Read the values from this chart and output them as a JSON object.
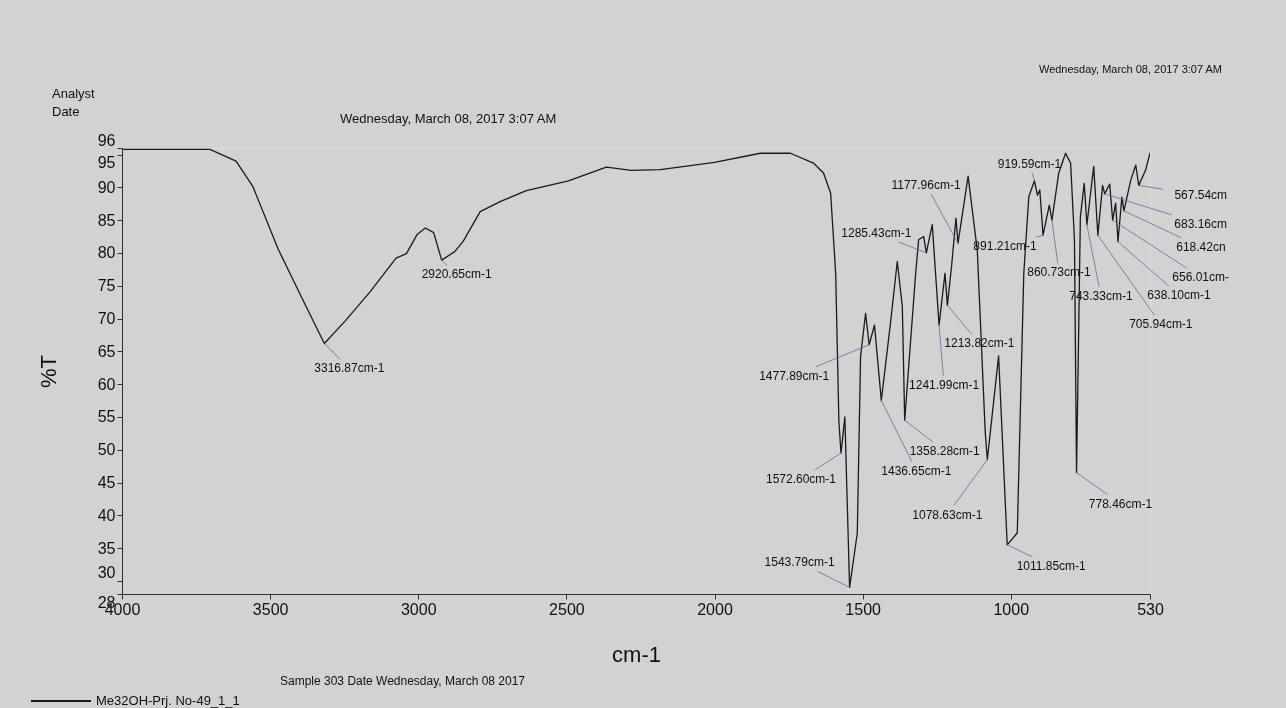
{
  "chart_data": {
    "type": "line",
    "xlabel": "cm-1",
    "ylabel": "%T",
    "xlim": [
      4000,
      530
    ],
    "xticks": [
      4000,
      3500,
      3000,
      2500,
      2000,
      1500,
      1000,
      530
    ],
    "ylim": [
      28,
      96
    ],
    "yticks": [
      28,
      30,
      35,
      40,
      45,
      50,
      55,
      60,
      65,
      70,
      75,
      80,
      85,
      90,
      95,
      96
    ],
    "grid": false,
    "legend": "bottom",
    "marker": "none",
    "line_style": "solid",
    "x": [
      4000,
      3703,
      3615,
      3559,
      3473,
      3389,
      3317,
      3247,
      3162,
      3075,
      3040,
      3004,
      2976,
      2948,
      2921,
      2877,
      2848,
      2791,
      2720,
      2635,
      2493,
      2365,
      2280,
      2183,
      2000,
      1845,
      1744,
      1666,
      1632,
      1608,
      1591,
      1580,
      1573,
      1560,
      1544,
      1518,
      1507,
      1490,
      1478,
      1460,
      1437,
      1406,
      1383,
      1366,
      1358,
      1321,
      1311,
      1294,
      1285,
      1265,
      1242,
      1222,
      1214,
      1200,
      1185,
      1178,
      1144,
      1113,
      1086,
      1079,
      1041,
      1012,
      978,
      956,
      939,
      920,
      910,
      902,
      891,
      870,
      861,
      838,
      815,
      798,
      785,
      778,
      765,
      752,
      743,
      720,
      706,
      690,
      683,
      666,
      656,
      646,
      638,
      625,
      618,
      595,
      578,
      568,
      545,
      530
    ],
    "series": [
      {
        "name": "Me32OH-Prj. No-49_1_1",
        "color": "#1a1a1a",
        "values": [
          95.8,
          95.8,
          94.0,
          90.2,
          80.6,
          72.8,
          66.2,
          69.6,
          74.1,
          79.2,
          79.9,
          82.8,
          83.8,
          83.1,
          78.9,
          80.2,
          81.8,
          86.3,
          87.9,
          89.5,
          91.0,
          93.1,
          92.6,
          92.7,
          93.8,
          95.2,
          95.2,
          93.7,
          92.2,
          89.1,
          76.9,
          54.1,
          49.5,
          55.0,
          29.0,
          37.3,
          64.2,
          70.8,
          66.0,
          69.0,
          57.5,
          69.3,
          78.7,
          71.8,
          54.5,
          76.9,
          82.0,
          82.5,
          80.0,
          84.3,
          69.0,
          76.9,
          72.0,
          77.9,
          85.3,
          81.5,
          91.7,
          80.4,
          52.5,
          48.5,
          64.3,
          35.5,
          37.3,
          76.9,
          88.6,
          91.0,
          88.8,
          89.6,
          82.7,
          87.3,
          85.0,
          92.2,
          95.2,
          93.7,
          82.0,
          46.5,
          85.5,
          90.6,
          84.3,
          93.2,
          82.7,
          90.3,
          89.0,
          90.5,
          85.0,
          87.6,
          81.7,
          88.5,
          86.4,
          91.1,
          93.4,
          90.3,
          92.6,
          95.2
        ]
      }
    ],
    "annotations": [
      "Analyst",
      "Date",
      "Wednesday, March 08, 2017 3:07 AM",
      "Wednesday, March 08, 2017 3:07 AM",
      "Sample 303 Date Wednesday, March 08 2017",
      {
        "text": "3316.87cm-1",
        "x": 3317,
        "y": 66.2
      },
      {
        "text": "2920.65cm-1",
        "x": 2921,
        "y": 78.9
      },
      {
        "text": "1572.60cm-1",
        "x": 1573,
        "y": 49.5
      },
      {
        "text": "1543.79cm-1",
        "x": 1544,
        "y": 29.0
      },
      {
        "text": "1477.89cm-1",
        "x": 1478,
        "y": 66.0
      },
      {
        "text": "1436.65cm-1",
        "x": 1437,
        "y": 57.5
      },
      {
        "text": "1358.28cm-1",
        "x": 1358,
        "y": 54.5
      },
      {
        "text": "1285.43cm-1",
        "x": 1285,
        "y": 80.0
      },
      {
        "text": "1241.99cm-1",
        "x": 1242,
        "y": 69.0
      },
      {
        "text": "1213.82cm-1",
        "x": 1214,
        "y": 72.0
      },
      {
        "text": "1177.96cm-1",
        "x": 1178,
        "y": 81.5
      },
      {
        "text": "1078.63cm-1",
        "x": 1079,
        "y": 48.5
      },
      {
        "text": "1011.85cm-1",
        "x": 1012,
        "y": 35.5
      },
      {
        "text": "919.59cm-1",
        "x": 920,
        "y": 91.0
      },
      {
        "text": "891.21cm-1",
        "x": 891,
        "y": 82.7
      },
      {
        "text": "860.73cm-1",
        "x": 861,
        "y": 85.0
      },
      {
        "text": "778.46cm-1",
        "x": 778,
        "y": 46.5
      },
      {
        "text": "743.33cm-1",
        "x": 743,
        "y": 84.3
      },
      {
        "text": "705.94cm-1",
        "x": 706,
        "y": 82.7
      },
      {
        "text": "683.16cm",
        "x": 683,
        "y": 89.0
      },
      {
        "text": "656.01cm-",
        "x": 656,
        "y": 85.0
      },
      {
        "text": "638.10cm-1",
        "x": 638,
        "y": 81.7
      },
      {
        "text": "618.42cn",
        "x": 618,
        "y": 86.4
      },
      {
        "text": "567.54cm",
        "x": 568,
        "y": 90.3
      }
    ]
  }
}
